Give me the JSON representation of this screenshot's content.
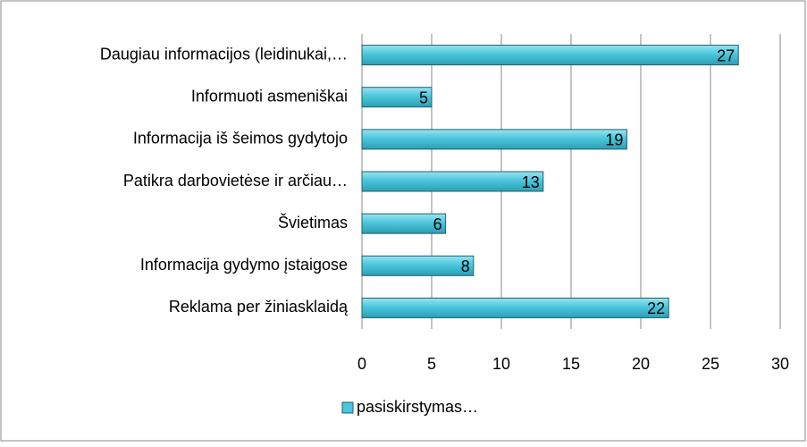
{
  "chart_data": {
    "type": "hbar",
    "categories": [
      "Daugiau informacijos (leidinukai,…",
      "Informuoti asmeniškai",
      "Informacija iš šeimos gydytojo",
      "Patikra darbovietėse ir arčiau…",
      "Švietimas",
      "Informacija gydymo įstaigose",
      "Reklama per žiniasklaidą"
    ],
    "series": [
      {
        "name": "pasiskirstymas…",
        "color": "#4bc6dc",
        "values": [
          27,
          5,
          19,
          13,
          6,
          8,
          22
        ]
      }
    ],
    "xlim": [
      0,
      30
    ],
    "xticks": [
      0,
      5,
      10,
      15,
      20,
      25,
      30
    ],
    "grid": true,
    "legend": "bottom"
  }
}
